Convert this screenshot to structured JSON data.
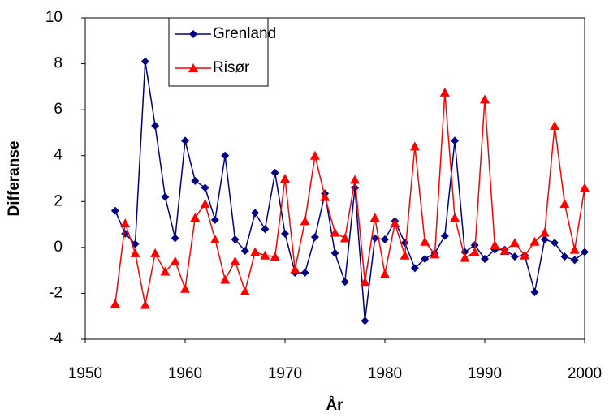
{
  "chart_data": {
    "type": "line",
    "x_label": "År",
    "y_label": "Differanse",
    "x": [
      1953,
      1954,
      1955,
      1956,
      1957,
      1958,
      1959,
      1960,
      1961,
      1962,
      1963,
      1964,
      1965,
      1966,
      1967,
      1968,
      1969,
      1970,
      1971,
      1972,
      1973,
      1974,
      1975,
      1976,
      1977,
      1978,
      1979,
      1980,
      1981,
      1982,
      1983,
      1984,
      1985,
      1986,
      1987,
      1988,
      1989,
      1990,
      1991,
      1992,
      1993,
      1994,
      1995,
      1996,
      1997,
      1998,
      1999,
      2000
    ],
    "series": [
      {
        "name": "Grenland",
        "color": "#000080",
        "marker": "diamond",
        "values": [
          1.6,
          0.6,
          0.15,
          8.1,
          5.3,
          2.2,
          0.4,
          4.65,
          2.9,
          2.6,
          1.2,
          4.0,
          0.35,
          -0.15,
          1.5,
          0.8,
          3.25,
          0.6,
          -1.1,
          -1.1,
          0.45,
          2.35,
          -0.25,
          -1.5,
          2.6,
          -3.2,
          0.4,
          0.35,
          1.15,
          0.2,
          -0.9,
          -0.5,
          -0.25,
          0.5,
          4.65,
          -0.2,
          0.1,
          -0.5,
          -0.1,
          -0.1,
          -0.4,
          -0.35,
          -1.95,
          0.35,
          0.2,
          -0.4,
          -0.55,
          -0.2
        ]
      },
      {
        "name": "Risør",
        "color": "#ff0000",
        "marker": "triangle",
        "values": [
          -2.45,
          1.05,
          -0.25,
          -2.5,
          -0.25,
          -1.05,
          -0.6,
          -1.8,
          1.3,
          1.9,
          0.35,
          -1.4,
          -0.6,
          -1.9,
          -0.2,
          -0.35,
          -0.4,
          3.0,
          -0.95,
          1.15,
          4.0,
          2.2,
          0.65,
          0.4,
          2.95,
          -1.5,
          1.3,
          -1.15,
          1.05,
          -0.35,
          4.4,
          0.25,
          -0.3,
          6.75,
          1.3,
          -0.45,
          -0.2,
          6.45,
          0.1,
          -0.15,
          0.2,
          -0.35,
          0.25,
          0.65,
          5.3,
          1.9,
          -0.1,
          2.6
        ]
      }
    ],
    "xlim": [
      1950,
      2000
    ],
    "xticks": [
      1950,
      1960,
      1970,
      1980,
      1990,
      2000
    ],
    "ylim": [
      -4,
      10
    ],
    "yticks": [
      -4,
      -2,
      0,
      2,
      4,
      6,
      8,
      10
    ],
    "grid": false,
    "legend": "top-left"
  }
}
